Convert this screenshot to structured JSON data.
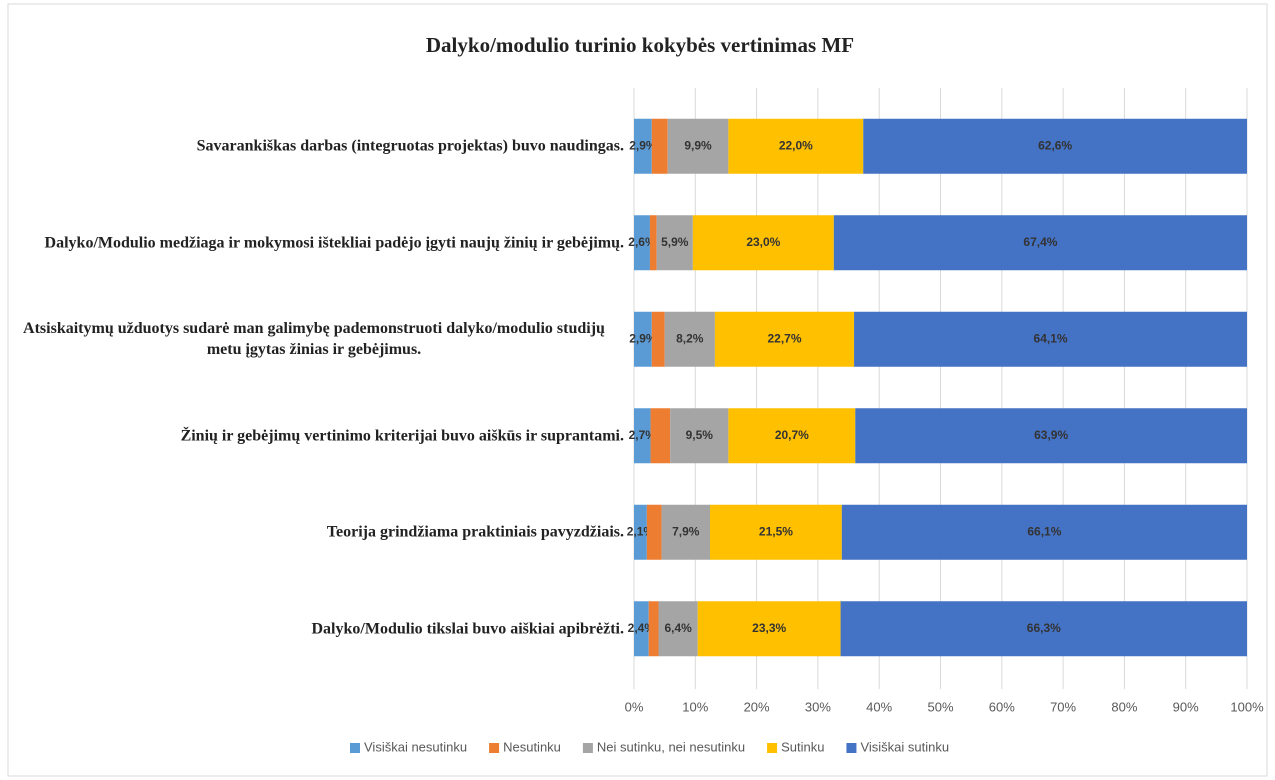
{
  "chart_data": {
    "type": "stacked-bar-horizontal",
    "title": "Dalyko/modulio  turinio kokybės vertinimas MF",
    "categories": [
      "Savarankiškas darbas (integruotas projektas) buvo naudingas.",
      "Dalyko/Modulio medžiaga ir mokymosi ištekliai padėjo įgyti naujų žinių ir gebėjimų.",
      "Atsiskaitymų  užduotys sudarė man galimybę pademonstruoti dalyko/modulio studijų metu įgytas žinias ir gebėjimus.",
      "Žinių ir gebėjimų vertinimo kriterijai buvo aiškūs ir suprantami.",
      "Teorija grindžiama praktiniais pavyzdžiais.",
      "Dalyko/Modulio tikslai buvo aiškiai apibrėžti."
    ],
    "series": [
      {
        "name": "Visiškai nesutinku",
        "color": "#5b9bd5",
        "values": [
          2.9,
          2.6,
          2.9,
          2.7,
          2.1,
          2.4
        ],
        "value_labels": [
          "2,9%",
          "2,6%",
          "2,9%",
          "2,7%",
          "2,1%",
          "2,4%"
        ]
      },
      {
        "name": "Nesutinku",
        "color": "#ed7d31",
        "values": [
          2.6,
          1.1,
          2.1,
          3.2,
          2.4,
          1.6
        ]
      },
      {
        "name": "Nei sutinku, nei nesutinku",
        "color": "#a5a5a5",
        "values": [
          9.9,
          5.9,
          8.2,
          9.5,
          7.9,
          6.4
        ],
        "value_labels": [
          "9,9%",
          "5,9%",
          "8,2%",
          "9,5%",
          "7,9%",
          "6,4%"
        ]
      },
      {
        "name": "Sutinku",
        "color": "#ffc000",
        "values": [
          22.0,
          23.0,
          22.7,
          20.7,
          21.5,
          23.3
        ],
        "value_labels": [
          "22,0%",
          "23,0%",
          "22,7%",
          "20,7%",
          "21,5%",
          "23,3%"
        ]
      },
      {
        "name": "Visiškai sutinku",
        "color": "#4472c4",
        "values": [
          62.6,
          67.4,
          64.1,
          63.9,
          66.1,
          66.3
        ],
        "value_labels": [
          "62,6%",
          "67,4%",
          "64,1%",
          "63,9%",
          "66,1%",
          "66,3%"
        ]
      }
    ],
    "xlim": [
      0,
      100
    ],
    "xticks": [
      {
        "value": 0,
        "label": "0%"
      },
      {
        "value": 10,
        "label": "10%"
      },
      {
        "value": 20,
        "label": "20%"
      },
      {
        "value": 30,
        "label": "30%"
      },
      {
        "value": 40,
        "label": "40%"
      },
      {
        "value": 50,
        "label": "50%"
      },
      {
        "value": 60,
        "label": "60%"
      },
      {
        "value": 70,
        "label": "70%"
      },
      {
        "value": 80,
        "label": "80%"
      },
      {
        "value": 90,
        "label": "90%"
      },
      {
        "value": 100,
        "label": "100%"
      }
    ],
    "grid": true,
    "legend": "bottom"
  }
}
